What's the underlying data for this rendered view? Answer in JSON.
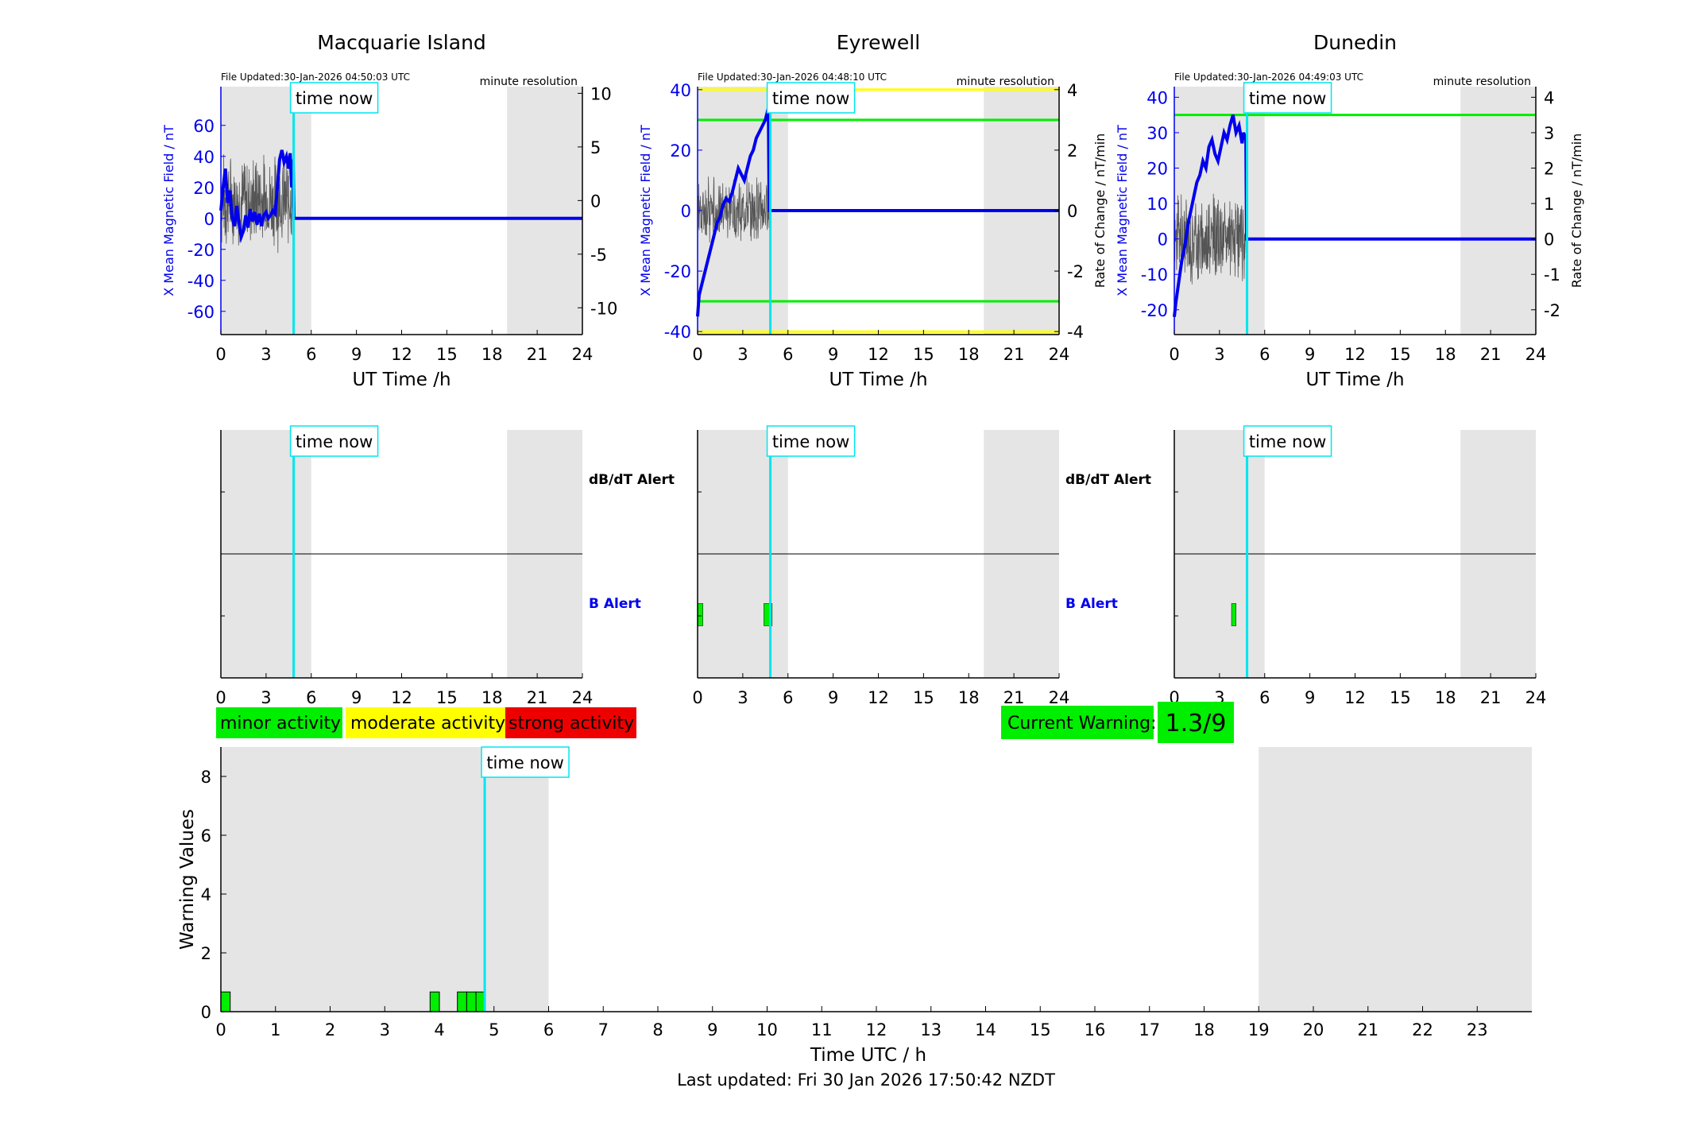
{
  "stations": [
    {
      "title": "Macquarie Island",
      "file_updated": "File Updated:30-Jan-2026 04:50:03 UTC",
      "resolution": "minute resolution",
      "ylabel_left": "X Mean Magnetic Field / nT",
      "ylabel_right": "",
      "ylim": [
        -75,
        85
      ],
      "yticks": [
        "60",
        "40",
        "20",
        "0",
        "-20",
        "-40",
        "-60"
      ],
      "ytick_values": [
        60,
        40,
        20,
        0,
        -20,
        -40,
        -60
      ],
      "rate_ylim": [
        -12.5,
        10.625
      ],
      "rate_ticks": [
        "10",
        "5",
        "0",
        "-5",
        "-10"
      ],
      "rate_tick_values": [
        10,
        5,
        0,
        -5,
        -10
      ],
      "threshold_green": null,
      "threshold_yellow": null,
      "field_series": [
        [
          0,
          5
        ],
        [
          0.15,
          20
        ],
        [
          0.3,
          32
        ],
        [
          0.45,
          10
        ],
        [
          0.6,
          18
        ],
        [
          0.75,
          0
        ],
        [
          0.9,
          -5
        ],
        [
          1.05,
          8
        ],
        [
          1.2,
          -3
        ],
        [
          1.35,
          -12
        ],
        [
          1.5,
          -8
        ],
        [
          1.65,
          2
        ],
        [
          1.8,
          -6
        ],
        [
          1.95,
          6
        ],
        [
          2.1,
          -2
        ],
        [
          2.25,
          4
        ],
        [
          2.4,
          -4
        ],
        [
          2.55,
          3
        ],
        [
          2.7,
          -5
        ],
        [
          2.85,
          2
        ],
        [
          3.0,
          4
        ],
        [
          3.15,
          0
        ],
        [
          3.3,
          2
        ],
        [
          3.45,
          5
        ],
        [
          3.6,
          3
        ],
        [
          3.75,
          20
        ],
        [
          3.9,
          38
        ],
        [
          4.05,
          44
        ],
        [
          4.2,
          36
        ],
        [
          4.35,
          40
        ],
        [
          4.5,
          32
        ],
        [
          4.6,
          42
        ],
        [
          4.7,
          20
        ],
        [
          4.8,
          38
        ],
        [
          4.85,
          0
        ],
        [
          24,
          0
        ]
      ],
      "rate_series_spread": 5,
      "bar_field": [],
      "bar_dbdt": []
    },
    {
      "title": "Eyrewell",
      "file_updated": "File Updated:30-Jan-2026 04:48:10 UTC",
      "resolution": "minute resolution",
      "ylabel_left": "X Mean Magnetic Field / nT",
      "ylabel_right": "Rate of Change / nT/min",
      "ylim": [
        -41,
        41
      ],
      "yticks": [
        "40",
        "20",
        "0",
        "-20",
        "-40"
      ],
      "ytick_values": [
        40,
        20,
        0,
        -20,
        -40
      ],
      "rate_ylim": [
        -4.1,
        4.1
      ],
      "rate_ticks": [
        "4",
        "2",
        "0",
        "-2",
        "-4"
      ],
      "rate_tick_values": [
        4,
        2,
        0,
        -2,
        -4
      ],
      "threshold_green": 30,
      "threshold_yellow": 40,
      "field_series": [
        [
          0,
          -35
        ],
        [
          0.1,
          -28
        ],
        [
          0.3,
          -24
        ],
        [
          0.5,
          -20
        ],
        [
          0.7,
          -16
        ],
        [
          0.9,
          -12
        ],
        [
          1.1,
          -8
        ],
        [
          1.3,
          -4
        ],
        [
          1.5,
          -2
        ],
        [
          1.7,
          2
        ],
        [
          1.9,
          4
        ],
        [
          2.1,
          3
        ],
        [
          2.3,
          6
        ],
        [
          2.5,
          10
        ],
        [
          2.7,
          14
        ],
        [
          2.9,
          12
        ],
        [
          3.1,
          10
        ],
        [
          3.3,
          14
        ],
        [
          3.5,
          18
        ],
        [
          3.7,
          20
        ],
        [
          3.9,
          24
        ],
        [
          4.1,
          26
        ],
        [
          4.3,
          28
        ],
        [
          4.5,
          30
        ],
        [
          4.7,
          34
        ],
        [
          4.75,
          0
        ],
        [
          24,
          0
        ]
      ],
      "rate_series_spread": 1.2,
      "bar_field": [
        [
          0,
          0.35
        ],
        [
          4.4,
          4.95
        ]
      ],
      "bar_dbdt": []
    },
    {
      "title": "Dunedin",
      "file_updated": "File Updated:30-Jan-2026 04:49:03 UTC",
      "resolution": "minute resolution",
      "ylabel_left": "X Mean Magnetic Field / nT",
      "ylabel_right": "Rate of Change / nT/min",
      "ylim": [
        -27,
        43
      ],
      "yticks": [
        "40",
        "30",
        "20",
        "10",
        "0",
        "-10",
        "-20"
      ],
      "ytick_values": [
        40,
        30,
        20,
        10,
        0,
        -10,
        -20
      ],
      "rate_ylim": [
        -2.7,
        4.3
      ],
      "rate_ticks": [
        "4",
        "3",
        "2",
        "1",
        "0",
        "-1",
        "-2"
      ],
      "rate_tick_values": [
        4,
        3,
        2,
        1,
        0,
        -1,
        -2
      ],
      "threshold_green": 35,
      "threshold_yellow": null,
      "field_series": [
        [
          0,
          -22
        ],
        [
          0.1,
          -18
        ],
        [
          0.3,
          -12
        ],
        [
          0.5,
          -6
        ],
        [
          0.7,
          -2
        ],
        [
          0.9,
          4
        ],
        [
          1.1,
          8
        ],
        [
          1.3,
          12
        ],
        [
          1.5,
          16
        ],
        [
          1.7,
          18
        ],
        [
          1.9,
          22
        ],
        [
          2.1,
          20
        ],
        [
          2.3,
          26
        ],
        [
          2.5,
          28
        ],
        [
          2.7,
          24
        ],
        [
          2.9,
          22
        ],
        [
          3.1,
          26
        ],
        [
          3.3,
          30
        ],
        [
          3.5,
          28
        ],
        [
          3.7,
          32
        ],
        [
          3.9,
          35
        ],
        [
          4.1,
          30
        ],
        [
          4.3,
          32
        ],
        [
          4.5,
          27
        ],
        [
          4.6,
          30
        ],
        [
          4.75,
          28
        ],
        [
          4.8,
          0
        ],
        [
          24,
          0
        ]
      ],
      "rate_series_spread": 1.4,
      "bar_field": [
        [
          3.8,
          4.1
        ]
      ],
      "bar_dbdt": []
    }
  ],
  "time_now_label": "time now",
  "time_now_hours": 4.83,
  "x_axis_label": "UT Time /h",
  "x_ticks": [
    "0",
    "3",
    "6",
    "9",
    "12",
    "15",
    "18",
    "21",
    "24"
  ],
  "x_tick_values": [
    0,
    3,
    6,
    9,
    12,
    15,
    18,
    21,
    24
  ],
  "dbdt_alert_label": "dB/dT Alert",
  "b_alert_label": "B Alert",
  "night_shading": [
    [
      0,
      6
    ],
    [
      19,
      24
    ]
  ],
  "legend": {
    "minor": "minor activity",
    "moderate": "moderate activity",
    "strong": "strong activity"
  },
  "current_warning": {
    "label": "Current Warning:",
    "value": "1.3/9"
  },
  "chart_data": {
    "type": "bar",
    "title": "",
    "xlabel": "Time UTC / h",
    "ylabel": "Warning Values",
    "xlim": [
      0,
      24
    ],
    "ylim": [
      0,
      9
    ],
    "x_ticks": [
      "0",
      "1",
      "2",
      "3",
      "4",
      "5",
      "6",
      "7",
      "8",
      "9",
      "10",
      "11",
      "12",
      "13",
      "14",
      "15",
      "16",
      "17",
      "18",
      "19",
      "20",
      "21",
      "22",
      "23"
    ],
    "y_ticks": [
      "0",
      "2",
      "4",
      "6",
      "8"
    ],
    "y_tick_values": [
      0,
      2,
      4,
      6,
      8
    ],
    "bars": [
      {
        "start": 0.0,
        "end": 0.17,
        "value": 0.67
      },
      {
        "start": 3.83,
        "end": 4.0,
        "value": 0.67
      },
      {
        "start": 4.33,
        "end": 4.5,
        "value": 0.67
      },
      {
        "start": 4.5,
        "end": 4.67,
        "value": 0.67
      },
      {
        "start": 4.67,
        "end": 4.83,
        "value": 0.67
      }
    ],
    "grid": false
  },
  "last_updated": "Last updated: Fri 30 Jan 2026 17:50:42 NZDT",
  "colors": {
    "field": "#0000ee",
    "rate": "#555555",
    "green": "#00ee00",
    "yellow": "#ffff00",
    "red": "#ee0000",
    "now_line": "#00e5ee",
    "shade": "#e5e5e5"
  }
}
